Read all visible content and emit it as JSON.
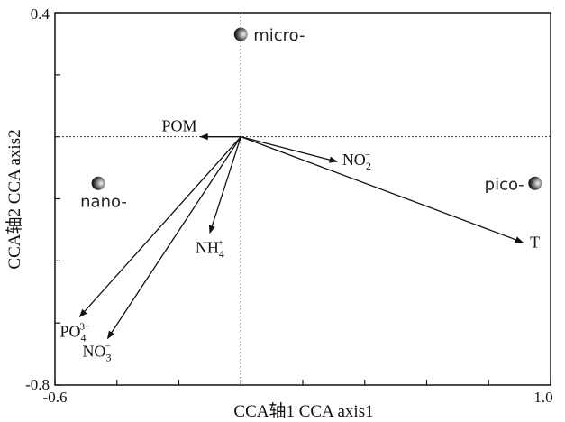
{
  "chart_data": {
    "type": "scatter",
    "subtype": "CCA biplot",
    "title": "",
    "xlabel": "CCA轴1 CCA axis1",
    "ylabel": "CCA轴2 CCA axis2",
    "xlim": [
      -0.6,
      1.0
    ],
    "ylim": [
      -0.8,
      0.4
    ],
    "x_tick_labels": [
      "-0.6",
      "1.0"
    ],
    "y_tick_labels": [
      "0.4",
      "-0.8"
    ],
    "reference_lines": {
      "x": 0,
      "y": 0,
      "style": "dotted"
    },
    "grid": false,
    "points": [
      {
        "label": "micro-",
        "x": 0.0,
        "y": 0.33
      },
      {
        "label": "nano-",
        "x": -0.46,
        "y": -0.15
      },
      {
        "label": "pico-",
        "x": 0.95,
        "y": -0.15
      }
    ],
    "vectors": [
      {
        "label": "POM",
        "base": "POM",
        "x": -0.13,
        "y": 0.0
      },
      {
        "label": "NO2-",
        "base": "NO",
        "sub": "2",
        "sup": "−",
        "x": 0.31,
        "y": -0.08
      },
      {
        "label": "T",
        "base": "T",
        "x": 0.91,
        "y": -0.34
      },
      {
        "label": "NH4+",
        "base": "NH",
        "sub": "4",
        "sup": "+",
        "x": -0.1,
        "y": -0.31
      },
      {
        "label": "PO43-",
        "base": "PO",
        "sub": "4",
        "sup": "3−",
        "x": -0.52,
        "y": -0.58
      },
      {
        "label": "NO3-",
        "base": "NO",
        "sub": "3",
        "sup": "−",
        "x": -0.43,
        "y": -0.65
      }
    ]
  }
}
